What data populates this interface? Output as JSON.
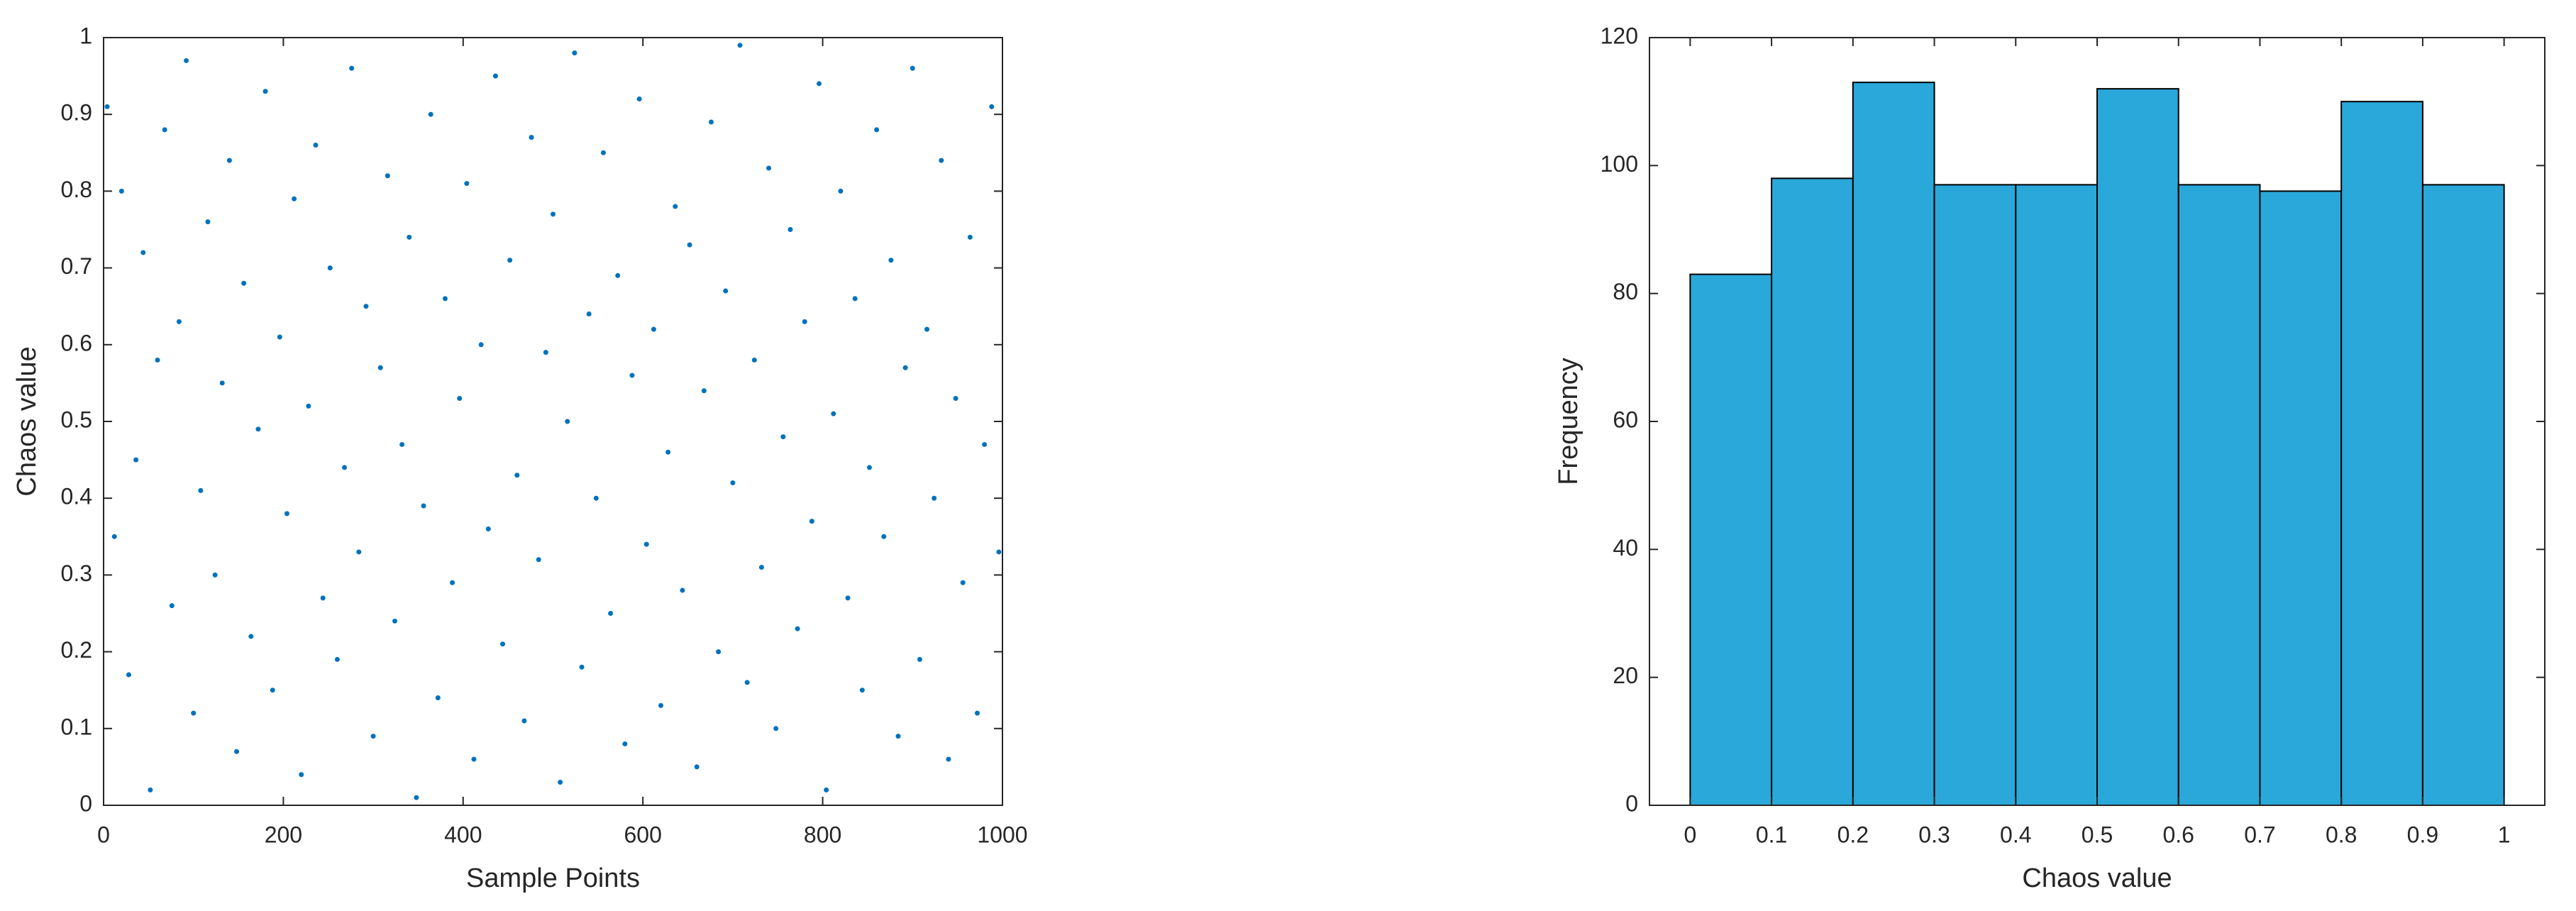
{
  "chart_data": [
    {
      "type": "scatter",
      "xlabel": "Sample Points",
      "ylabel": "Chaos value",
      "color": "#0072bd",
      "x": [
        4,
        12,
        20,
        28,
        36,
        44,
        52,
        60,
        68,
        76,
        84,
        92,
        100,
        108,
        116,
        124,
        132,
        140,
        148,
        156,
        164,
        172,
        180,
        188,
        196,
        204,
        212,
        220,
        228,
        236,
        244,
        252,
        260,
        268,
        276,
        284,
        292,
        300,
        308,
        316,
        324,
        332,
        340,
        348,
        356,
        364,
        372,
        380,
        388,
        396,
        404,
        412,
        420,
        428,
        436,
        444,
        452,
        460,
        468,
        476,
        484,
        492,
        500,
        508,
        516,
        524,
        532,
        540,
        548,
        556,
        564,
        572,
        580,
        588,
        596,
        604,
        612,
        620,
        628,
        636,
        644,
        652,
        660,
        668,
        676,
        684,
        692,
        700,
        708,
        716,
        724,
        732,
        740,
        748,
        756,
        764,
        772,
        780,
        788,
        796,
        804,
        812,
        820,
        828,
        836,
        844,
        852,
        860,
        868,
        876,
        884,
        892,
        900,
        908,
        916,
        924,
        932,
        940,
        948,
        956,
        964,
        972,
        980,
        988,
        996
      ],
      "values": [
        0.91,
        0.35,
        0.8,
        0.17,
        0.45,
        0.72,
        0.02,
        0.58,
        0.88,
        0.26,
        0.63,
        0.97,
        0.12,
        0.41,
        0.76,
        0.3,
        0.55,
        0.84,
        0.07,
        0.68,
        0.22,
        0.49,
        0.93,
        0.15,
        0.61,
        0.38,
        0.79,
        0.04,
        0.52,
        0.86,
        0.27,
        0.7,
        0.19,
        0.44,
        0.96,
        0.33,
        0.65,
        0.09,
        0.57,
        0.82,
        0.24,
        0.47,
        0.74,
        0.01,
        0.39,
        0.9,
        0.14,
        0.66,
        0.29,
        0.53,
        0.81,
        0.06,
        0.6,
        0.36,
        0.95,
        0.21,
        0.71,
        0.43,
        0.11,
        0.87,
        0.32,
        0.59,
        0.77,
        0.03,
        0.5,
        0.98,
        0.18,
        0.64,
        0.4,
        0.85,
        0.25,
        0.69,
        0.08,
        0.56,
        0.92,
        0.34,
        0.62,
        0.13,
        0.46,
        0.78,
        0.28,
        0.73,
        0.05,
        0.54,
        0.89,
        0.2,
        0.67,
        0.42,
        0.99,
        0.16,
        0.58,
        0.31,
        0.83,
        0.1,
        0.48,
        0.75,
        0.23,
        0.63,
        0.37,
        0.94,
        0.02,
        0.51,
        0.8,
        0.27,
        0.66,
        0.15,
        0.44,
        0.88,
        0.35,
        0.71,
        0.09,
        0.57,
        0.96,
        0.19,
        0.62,
        0.4,
        0.84,
        0.06,
        0.53,
        0.29,
        0.74,
        0.12,
        0.47,
        0.91,
        0.33
      ],
      "xlim": [
        0,
        1000
      ],
      "xticks": [
        0,
        200,
        400,
        600,
        800,
        1000
      ],
      "ylim": [
        0,
        1
      ],
      "yticks": [
        0,
        0.1,
        0.2,
        0.3,
        0.4,
        0.5,
        0.6,
        0.7,
        0.8,
        0.9,
        1
      ]
    },
    {
      "type": "histogram",
      "xlabel": "Chaos value",
      "ylabel": "Frequency",
      "color": "#2aa8d9",
      "bins": [
        0,
        0.1,
        0.2,
        0.3,
        0.4,
        0.5,
        0.6,
        0.7,
        0.8,
        0.9,
        1
      ],
      "values": [
        83,
        98,
        113,
        97,
        97,
        112,
        97,
        96,
        110,
        97
      ],
      "xlim": [
        -0.05,
        1.05
      ],
      "xticks": [
        0,
        0.1,
        0.2,
        0.3,
        0.4,
        0.5,
        0.6,
        0.7,
        0.8,
        0.9,
        1
      ],
      "ylim": [
        0,
        120
      ],
      "yticks": [
        0,
        20,
        40,
        60,
        80,
        100,
        120
      ]
    }
  ]
}
